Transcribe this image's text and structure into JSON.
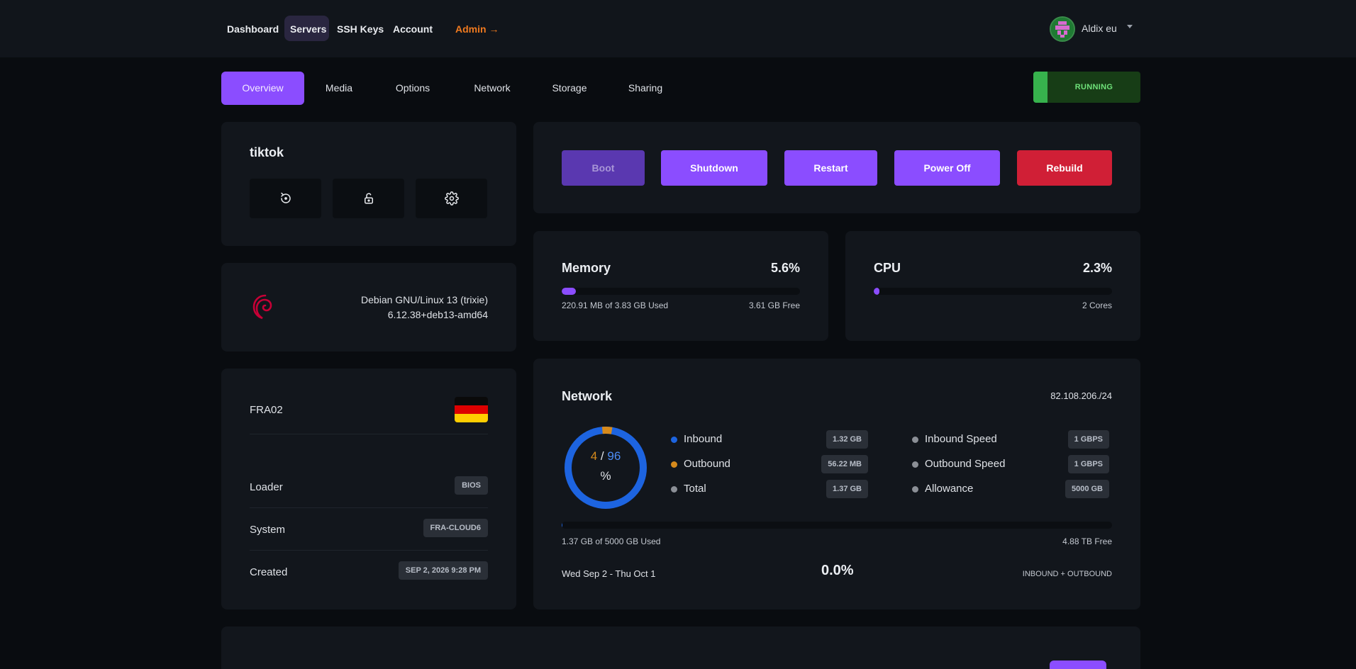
{
  "nav": {
    "items": [
      {
        "label": "Dashboard"
      },
      {
        "label": "Servers"
      },
      {
        "label": "SSH Keys"
      },
      {
        "label": "Account"
      }
    ],
    "admin_label": "Admin →",
    "user_name": "Aldix eu"
  },
  "tabs": [
    {
      "label": "Overview"
    },
    {
      "label": "Media"
    },
    {
      "label": "Options"
    },
    {
      "label": "Network"
    },
    {
      "label": "Storage"
    },
    {
      "label": "Sharing"
    }
  ],
  "status": "RUNNING",
  "server": {
    "name": "tiktok",
    "icons": [
      "reinstall-icon",
      "lock-icon",
      "gear-icon"
    ]
  },
  "os": {
    "name": "Debian GNU/Linux 13 (trixie)",
    "kernel": "6.12.38+deb13-amd64",
    "icon": "debian-logo-icon"
  },
  "location": {
    "code": "FRA02",
    "flag": "germany-flag-icon",
    "rows": [
      {
        "label": "Loader",
        "value": "BIOS"
      },
      {
        "label": "System",
        "value": "FRA-CLOUD6"
      },
      {
        "label": "Created",
        "value": "SEP 2, 2026 9:28 PM"
      }
    ]
  },
  "actions": {
    "boot": "Boot",
    "shutdown": "Shutdown",
    "restart": "Restart",
    "power_off": "Power Off",
    "rebuild": "Rebuild"
  },
  "memory": {
    "title": "Memory",
    "percent": "5.6%",
    "fill_fraction": 0.056,
    "used": "220.91 MB of 3.83 GB Used",
    "free": "3.61 GB Free"
  },
  "cpu": {
    "title": "CPU",
    "percent": "2.3%",
    "fill_fraction": 0.023,
    "cores": "2 Cores"
  },
  "network": {
    "title": "Network",
    "ip": "82.108.206./24",
    "donut": {
      "outbound_part": "4",
      "slash": "/",
      "inbound_part": "96",
      "unit": "%"
    },
    "legend": [
      {
        "label": "Inbound",
        "value": "1.32 GB",
        "color": "#1d64e0"
      },
      {
        "label": "Outbound",
        "value": "56.22 MB",
        "color": "#d68a1c"
      },
      {
        "label": "Total",
        "value": "1.37 GB",
        "color": "#8b8f96"
      }
    ],
    "speeds": [
      {
        "label": "Inbound Speed",
        "value": "1 GBPS",
        "color": "#8b8f96"
      },
      {
        "label": "Outbound Speed",
        "value": "1 GBPS",
        "color": "#8b8f96"
      },
      {
        "label": "Allowance",
        "value": "5000 GB",
        "color": "#8b8f96"
      }
    ],
    "usage_fraction": 0.000274,
    "used": "1.37 GB of 5000 GB Used",
    "free": "4.88 TB Free",
    "period": "Wed Sep 2 - Thu Oct 1",
    "period_percent": "0.0%",
    "scope": "INBOUND + OUTBOUND"
  },
  "colors": {
    "accent": "#8b4dff",
    "danger": "#d01f36",
    "running": "#37b24d",
    "admin": "#f07a1f"
  }
}
